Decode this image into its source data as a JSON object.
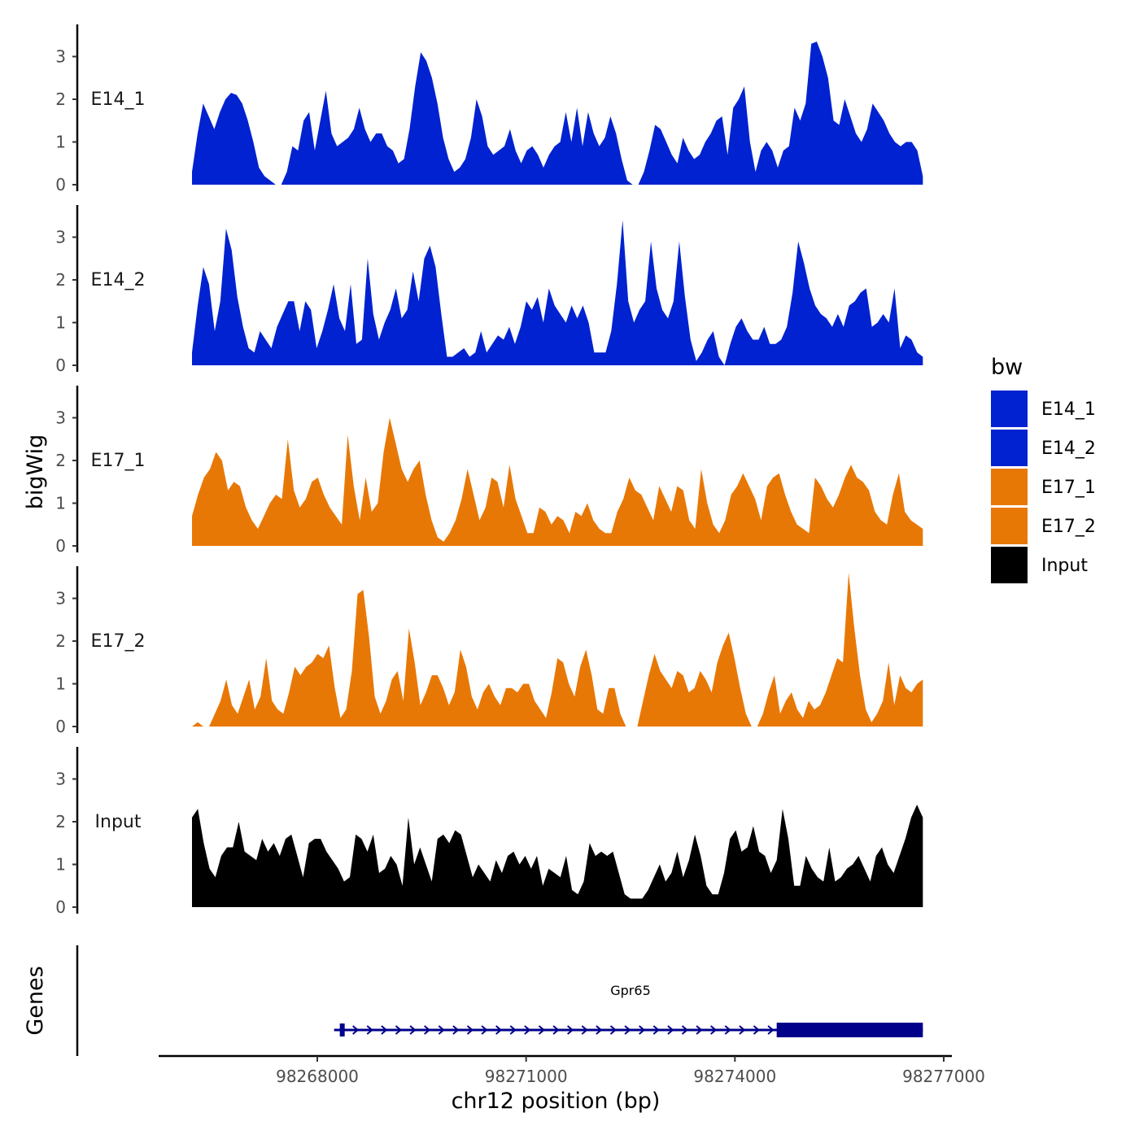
{
  "chart_data": {
    "type": "area",
    "region": {
      "chrom": "chr12",
      "start": 98266200,
      "end": 98276700
    },
    "xlabel": "chr12 position (bp)",
    "ylabel": "bigWig",
    "x_ticks": [
      98268000,
      98271000,
      98274000,
      98277000
    ],
    "x_tick_labels": [
      "98268000",
      "98271000",
      "98274000",
      "98277000"
    ],
    "xlim": [
      98265000,
      98277000
    ],
    "ylim": [
      0,
      3.8
    ],
    "y_ticks": [
      0,
      1,
      2,
      3
    ],
    "y_tick_labels": [
      "0",
      "1",
      "2",
      "3"
    ],
    "legend": {
      "title": "bw",
      "position": "right",
      "entries": [
        {
          "label": "E14_1",
          "color": "#0022d0"
        },
        {
          "label": "E14_2",
          "color": "#0022d0"
        },
        {
          "label": "E17_1",
          "color": "#e87806"
        },
        {
          "label": "E17_2",
          "color": "#e87806"
        },
        {
          "label": "Input",
          "color": "#000000"
        }
      ]
    },
    "series": [
      {
        "name": "E14_1",
        "color": "#0022d0",
        "values": [
          0.3,
          1.2,
          1.9,
          1.6,
          1.3,
          1.7,
          2.0,
          2.15,
          2.1,
          1.9,
          1.5,
          1.0,
          0.4,
          0.2,
          0.1,
          0,
          0,
          0.3,
          0.9,
          0.8,
          1.5,
          1.7,
          0.8,
          1.5,
          2.2,
          1.2,
          0.9,
          1.0,
          1.1,
          1.3,
          1.8,
          1.3,
          1.0,
          1.2,
          1.2,
          0.9,
          0.8,
          0.5,
          0.6,
          1.3,
          2.3,
          3.1,
          2.9,
          2.5,
          1.9,
          1.1,
          0.6,
          0.3,
          0.4,
          0.6,
          1.1,
          2.0,
          1.6,
          0.9,
          0.7,
          0.8,
          0.9,
          1.3,
          0.8,
          0.5,
          0.8,
          0.9,
          0.7,
          0.4,
          0.7,
          0.9,
          1.0,
          1.7,
          1.0,
          1.8,
          0.9,
          1.7,
          1.2,
          0.9,
          1.1,
          1.6,
          1.2,
          0.6,
          0.1,
          0,
          0,
          0.3,
          0.8,
          1.4,
          1.3,
          1.0,
          0.7,
          0.5,
          1.1,
          0.8,
          0.6,
          0.7,
          1.0,
          1.2,
          1.5,
          1.6,
          0.7,
          1.8,
          2.0,
          2.3,
          1.0,
          0.3,
          0.8,
          1.0,
          0.8,
          0.4,
          0.8,
          0.9,
          1.8,
          1.5,
          1.9,
          3.3,
          3.35,
          3.0,
          2.5,
          1.5,
          1.4,
          2.0,
          1.6,
          1.2,
          1.0,
          1.3,
          1.9,
          1.7,
          1.5,
          1.2,
          1.0,
          0.9,
          1.0,
          1.0,
          0.8,
          0.2
        ]
      },
      {
        "name": "E14_2",
        "color": "#0022d0",
        "values": [
          0.3,
          1.4,
          2.3,
          1.9,
          0.8,
          1.5,
          3.2,
          2.7,
          1.6,
          0.9,
          0.4,
          0.3,
          0.8,
          0.6,
          0.4,
          0.9,
          1.2,
          1.5,
          1.5,
          0.8,
          1.5,
          1.3,
          0.4,
          0.8,
          1.3,
          1.9,
          1.1,
          0.8,
          1.9,
          0.5,
          0.6,
          2.5,
          1.2,
          0.6,
          1.0,
          1.3,
          1.8,
          1.1,
          1.3,
          2.2,
          1.5,
          2.5,
          2.8,
          2.3,
          1.2,
          0.2,
          0.2,
          0.3,
          0.4,
          0.2,
          0.3,
          0.8,
          0.3,
          0.5,
          0.7,
          0.6,
          0.9,
          0.5,
          0.9,
          1.5,
          1.3,
          1.6,
          1.0,
          1.8,
          1.4,
          1.2,
          1.0,
          1.4,
          1.1,
          1.4,
          1.0,
          0.3,
          0.3,
          0.3,
          0.8,
          1.9,
          3.4,
          1.5,
          1.0,
          1.3,
          1.5,
          2.9,
          1.8,
          1.3,
          1.1,
          1.5,
          2.9,
          1.6,
          0.6,
          0.1,
          0.3,
          0.6,
          0.8,
          0.2,
          0,
          0.5,
          0.9,
          1.1,
          0.8,
          0.6,
          0.6,
          0.9,
          0.5,
          0.5,
          0.6,
          0.9,
          1.7,
          2.9,
          2.4,
          1.8,
          1.4,
          1.2,
          1.1,
          0.9,
          1.2,
          0.9,
          1.4,
          1.5,
          1.7,
          1.8,
          0.9,
          1.0,
          1.2,
          1.0,
          1.8,
          0.4,
          0.7,
          0.6,
          0.3,
          0.2
        ]
      },
      {
        "name": "E17_1",
        "color": "#e87806",
        "values": [
          0.7,
          1.2,
          1.6,
          1.8,
          2.2,
          2.0,
          1.3,
          1.5,
          1.4,
          0.9,
          0.6,
          0.4,
          0.7,
          1.0,
          1.2,
          1.1,
          2.5,
          1.3,
          0.9,
          1.1,
          1.5,
          1.6,
          1.2,
          0.9,
          0.7,
          0.5,
          2.6,
          1.4,
          0.6,
          1.6,
          0.8,
          1.0,
          2.2,
          3.0,
          2.4,
          1.8,
          1.5,
          1.8,
          2.0,
          1.2,
          0.6,
          0.2,
          0.1,
          0.3,
          0.6,
          1.1,
          1.8,
          1.2,
          0.6,
          0.9,
          1.6,
          1.5,
          0.9,
          1.9,
          1.1,
          0.7,
          0.3,
          0.3,
          0.9,
          0.8,
          0.5,
          0.7,
          0.6,
          0.3,
          0.8,
          0.7,
          1.0,
          0.6,
          0.4,
          0.3,
          0.3,
          0.8,
          1.1,
          1.6,
          1.3,
          1.2,
          0.9,
          0.6,
          1.4,
          1.1,
          0.8,
          1.4,
          1.3,
          0.6,
          0.4,
          1.8,
          1.0,
          0.5,
          0.3,
          0.6,
          1.2,
          1.4,
          1.7,
          1.4,
          1.1,
          0.6,
          1.4,
          1.6,
          1.7,
          1.2,
          0.8,
          0.5,
          0.4,
          0.3,
          1.6,
          1.4,
          1.1,
          0.9,
          1.2,
          1.6,
          1.9,
          1.6,
          1.5,
          1.3,
          0.8,
          0.6,
          0.5,
          1.2,
          1.7,
          0.8,
          0.6,
          0.5,
          0.4
        ]
      },
      {
        "name": "E17_2",
        "color": "#e87806",
        "values": [
          0,
          0.1,
          0,
          0,
          0.3,
          0.6,
          1.1,
          0.5,
          0.3,
          0.7,
          1.1,
          0.4,
          0.7,
          1.6,
          0.6,
          0.4,
          0.3,
          0.8,
          1.4,
          1.2,
          1.4,
          1.5,
          1.7,
          1.6,
          1.9,
          0.9,
          0.2,
          0.4,
          1.3,
          3.1,
          3.2,
          2.1,
          0.7,
          0.3,
          0.6,
          1.1,
          1.3,
          0.6,
          2.3,
          1.5,
          0.5,
          0.8,
          1.2,
          1.2,
          0.9,
          0.5,
          0.8,
          1.8,
          1.4,
          0.7,
          0.4,
          0.8,
          1.0,
          0.7,
          0.5,
          0.9,
          0.9,
          0.8,
          1.0,
          1.0,
          0.6,
          0.4,
          0.2,
          0.8,
          1.6,
          1.5,
          1.0,
          0.7,
          1.4,
          1.8,
          1.2,
          0.4,
          0.3,
          0.9,
          0.9,
          0.3,
          0,
          0,
          0,
          0.6,
          1.2,
          1.7,
          1.3,
          1.1,
          0.9,
          1.3,
          1.2,
          0.8,
          0.9,
          1.3,
          1.1,
          0.8,
          1.5,
          1.9,
          2.2,
          1.6,
          0.9,
          0.3,
          0,
          0,
          0.3,
          0.8,
          1.2,
          0.3,
          0.6,
          0.8,
          0.4,
          0.2,
          0.6,
          0.4,
          0.5,
          0.8,
          1.2,
          1.6,
          1.5,
          3.6,
          2.3,
          1.2,
          0.4,
          0.1,
          0.3,
          0.6,
          1.5,
          0.5,
          1.2,
          0.9,
          0.8,
          1.0,
          1.1
        ]
      },
      {
        "name": "Input",
        "color": "#000000",
        "values": [
          2.1,
          2.3,
          1.5,
          0.9,
          0.7,
          1.2,
          1.4,
          1.4,
          2.0,
          1.3,
          1.2,
          1.1,
          1.6,
          1.3,
          1.5,
          1.2,
          1.6,
          1.7,
          1.2,
          0.7,
          1.5,
          1.6,
          1.6,
          1.3,
          1.1,
          0.9,
          0.6,
          0.7,
          1.7,
          1.6,
          1.3,
          1.7,
          0.8,
          0.9,
          1.2,
          1.0,
          0.5,
          2.1,
          1.0,
          1.4,
          1.0,
          0.6,
          1.6,
          1.7,
          1.5,
          1.8,
          1.7,
          1.2,
          0.7,
          1.0,
          0.8,
          0.6,
          1.1,
          0.8,
          1.2,
          1.3,
          1.0,
          1.2,
          0.9,
          1.2,
          0.5,
          0.9,
          0.8,
          0.7,
          1.2,
          0.4,
          0.3,
          0.6,
          1.5,
          1.2,
          1.3,
          1.2,
          1.3,
          0.8,
          0.3,
          0.2,
          0.2,
          0.2,
          0.4,
          0.7,
          1.0,
          0.6,
          0.8,
          1.3,
          0.7,
          1.1,
          1.7,
          1.2,
          0.5,
          0.3,
          0.3,
          0.8,
          1.6,
          1.8,
          1.3,
          1.4,
          1.9,
          1.3,
          1.2,
          0.8,
          1.1,
          2.3,
          1.6,
          0.5,
          0.5,
          1.2,
          0.9,
          0.7,
          0.6,
          1.4,
          0.6,
          0.7,
          0.9,
          1.0,
          1.2,
          0.9,
          0.6,
          1.2,
          1.4,
          1.0,
          0.8,
          1.2,
          1.6,
          2.1,
          2.4,
          2.1
        ]
      }
    ],
    "genes": {
      "track_label": "Genes",
      "items": [
        {
          "name": "Gpr65",
          "strand": "+",
          "start": 98268300,
          "end": 98276700,
          "thick_start": 98274600,
          "thick_end": 98276700,
          "color": "#00008b"
        }
      ]
    }
  }
}
